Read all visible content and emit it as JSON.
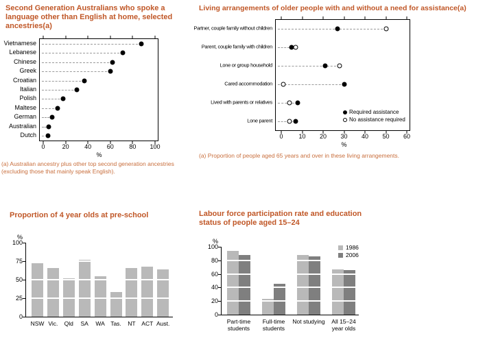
{
  "colors": {
    "title": "#c05727",
    "footnote": "#c86e3c",
    "bar": "#b9b9b9",
    "bar_1986": "#b9b9b9",
    "bar_2006": "#7f7f7f",
    "dot": "#000000",
    "dash_line": "#999999"
  },
  "chart_data": [
    {
      "id": "ancestry",
      "type": "dot",
      "title": "Second Generation Australians who spoke a language other than English at home, selected ancestries(a)",
      "footnote": "(a) Australian ancestry plus other top second generation ancestries (excluding those that mainly speak English).",
      "categories": [
        "Vietnamese",
        "Lebanese",
        "Chinese",
        "Greek",
        "Croatian",
        "Italian",
        "Polish",
        "Maltese",
        "German",
        "Australian",
        "Dutch"
      ],
      "values": [
        88,
        71,
        62,
        60,
        37,
        30,
        18,
        13,
        8,
        5,
        4
      ],
      "xlabel": "%",
      "xlim": [
        0,
        100
      ],
      "xticks": [
        0,
        20,
        40,
        60,
        80,
        100
      ],
      "grid": false
    },
    {
      "id": "living-arrangements",
      "type": "dot",
      "title": "Living arrangements of older people with and without a need for assistance(a)",
      "footnote": "(a) Proportion of people aged 65 years and over in these living arrangements.",
      "categories": [
        "Partner, couple family without children",
        "Parent, couple family with children",
        "Lone or group household",
        "Cared accommodation",
        "Lived with parents or relatives",
        "Lone parent"
      ],
      "series": [
        {
          "name": "Required assistance",
          "marker": "filled",
          "values": [
            27,
            5,
            21,
            30,
            8,
            7
          ]
        },
        {
          "name": "No assistance required",
          "marker": "open",
          "values": [
            50,
            7,
            28,
            1,
            4,
            4
          ]
        }
      ],
      "xlabel": "%",
      "xlim": [
        0,
        60
      ],
      "xticks": [
        0,
        10,
        20,
        30,
        40,
        50,
        60
      ],
      "legend_position": "bottom-right-inside",
      "grid": false
    },
    {
      "id": "preschool",
      "type": "bar",
      "title": "Proportion of 4 year olds at pre-school",
      "categories": [
        "NSW",
        "Vic.",
        "Qld",
        "SA",
        "WA",
        "Tas.",
        "NT",
        "ACT",
        "Aust."
      ],
      "values": [
        72,
        66,
        52,
        77,
        55,
        33,
        66,
        68,
        64
      ],
      "ylabel": "%",
      "ylim": [
        0,
        100
      ],
      "yticks": [
        0,
        25,
        50,
        75,
        100
      ],
      "gridlines_over_bars": [
        25,
        50,
        75
      ]
    },
    {
      "id": "labour-force",
      "type": "grouped-bar",
      "title": "Labour force participation rate and education status of people aged 15–24",
      "categories": [
        "Part-time students",
        "Full-time students",
        "Not studying",
        "All 15–24 year olds"
      ],
      "category_labels": [
        [
          "Part-time",
          "students"
        ],
        [
          "Full-time",
          "students"
        ],
        [
          "Not studying"
        ],
        [
          "All 15–24",
          "year olds"
        ]
      ],
      "series": [
        {
          "name": "1986",
          "values": [
            94,
            23,
            88,
            67
          ]
        },
        {
          "name": "2006",
          "values": [
            88,
            45,
            86,
            66
          ]
        }
      ],
      "ylabel": "%",
      "ylim": [
        0,
        100
      ],
      "yticks": [
        0,
        20,
        40,
        60,
        80,
        100
      ],
      "legend_position": "top-right-inside",
      "gridlines_over_bars": [
        20,
        40,
        60,
        80
      ]
    }
  ]
}
